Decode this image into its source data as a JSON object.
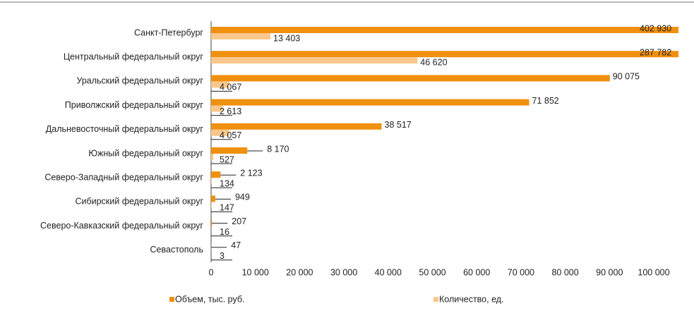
{
  "chart_data": {
    "type": "hbar",
    "categories": [
      "Санкт-Петербург",
      "Центральный федеральный округ",
      "Уральский федеральный округ",
      "Приволжский федеральный округ",
      "Дальневосточный федеральный округ",
      "Южный федеральный округ",
      "Северо-Западный федеральный округ",
      "Сибирский федеральный округ",
      "Северо-Кавказский федеральный округ",
      "Севастополь"
    ],
    "series": [
      {
        "name": "Объем, тыс. руб.",
        "color": "#f0900f",
        "values": [
          402930,
          287782,
          90075,
          71852,
          38517,
          8170,
          2123,
          949,
          207,
          47
        ],
        "value_labels": [
          "402 930",
          "287 782",
          "90 075",
          "71 852",
          "38 517",
          "8 170",
          "2 123",
          "949",
          "207",
          "47"
        ]
      },
      {
        "name": "Количество, ед.",
        "color": "#f9c78b",
        "values": [
          13403,
          46620,
          4067,
          2613,
          4057,
          527,
          134,
          147,
          16,
          3
        ],
        "value_labels": [
          "13 403",
          "46 620",
          "4 067",
          "2 613",
          "4 057",
          "527",
          "134",
          "147",
          "16",
          "3"
        ]
      }
    ],
    "xlim": [
      0,
      100000
    ],
    "xticks": [
      0,
      {
        "value": 10000,
        "label": "10 000"
      },
      {
        "value": 20000,
        "label": "20 000"
      },
      {
        "value": 30000,
        "label": "30 000"
      },
      {
        "value": 40000,
        "label": "40 000"
      },
      {
        "value": 50000,
        "label": "50 000"
      },
      {
        "value": 60000,
        "label": "60 000"
      },
      {
        "value": 70000,
        "label": "70 000"
      },
      {
        "value": 80000,
        "label": "80 000"
      },
      {
        "value": 90000,
        "label": "90 000"
      },
      {
        "value": 100000,
        "label": "100 000"
      }
    ],
    "legend": "bottom"
  }
}
